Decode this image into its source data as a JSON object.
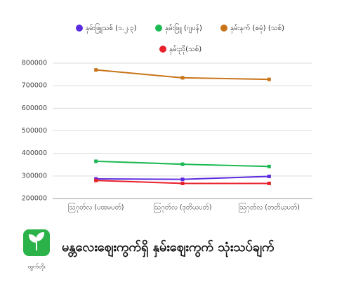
{
  "chart_data": {
    "type": "line",
    "categories": [
      "ဩဂုတ်လ (ပထမပတ်)",
      "ဩဂုတ်လ (ဒုတိယပတ်)",
      "ဩဂုတ်လ (တတိယပတ်)"
    ],
    "series": [
      {
        "name": "နှမ်းဖြူသစ် (၁.၂.၃)",
        "color": "#5b2be0",
        "values": [
          287000,
          285000,
          298000
        ]
      },
      {
        "name": "နှမ်းဖြူ (ဂျပန်)",
        "color": "#1db954",
        "values": [
          365000,
          352000,
          342000
        ]
      },
      {
        "name": "နှမ်းနက် (စမုံ) (သစ်)",
        "color": "#c8741a",
        "values": [
          770000,
          735000,
          728000
        ]
      },
      {
        "name": "နှမ်းညို(သစ်)",
        "color": "#e8202a",
        "values": [
          280000,
          267000,
          267000
        ]
      }
    ],
    "ylim": [
      200000,
      800000
    ],
    "yticks": [
      200000,
      300000,
      400000,
      500000,
      600000,
      700000,
      800000
    ],
    "grid": true,
    "legend": "top"
  },
  "footer": {
    "title": "မန္တလေးဈေးကွက်ရှိ နှမ်းဈေးကွက် သုံးသပ်ချက်",
    "logo_text": "ထွက်တိုး"
  }
}
